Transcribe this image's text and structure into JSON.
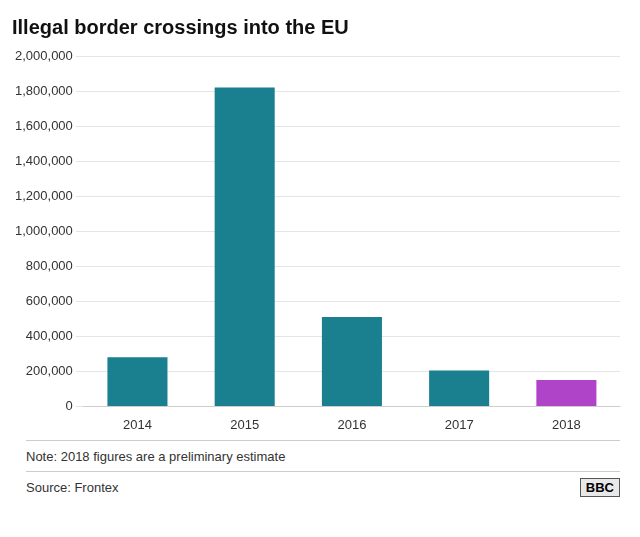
{
  "chart_data": {
    "type": "bar",
    "title": "Illegal border crossings into the EU",
    "categories": [
      "2014",
      "2015",
      "2016",
      "2017",
      "2018"
    ],
    "values": [
      280000,
      1820000,
      510000,
      205000,
      150000
    ],
    "colors": [
      "#1a7f8e",
      "#1a7f8e",
      "#1a7f8e",
      "#1a7f8e",
      "#b044c8"
    ],
    "ylim": [
      0,
      2000000
    ],
    "yticks": [
      0,
      {
        "value": 200000,
        "label": "200,000"
      },
      {
        "value": 400000,
        "label": "400,000"
      },
      {
        "value": 600000,
        "label": "600,000"
      },
      {
        "value": 800000,
        "label": "800,000"
      },
      {
        "value": 1000000,
        "label": "1,000,000"
      },
      {
        "value": 1200000,
        "label": "1,200,000"
      },
      {
        "value": 1400000,
        "label": "1,400,000"
      },
      {
        "value": 1600000,
        "label": "1,600,000"
      },
      {
        "value": 1800000,
        "label": "1,800,000"
      },
      {
        "value": 2000000,
        "label": "2,000,000"
      }
    ],
    "grid": true,
    "annotations": [
      "Note: 2018 figures are a preliminary estimate",
      "Source: Frontex",
      "BBC"
    ]
  }
}
